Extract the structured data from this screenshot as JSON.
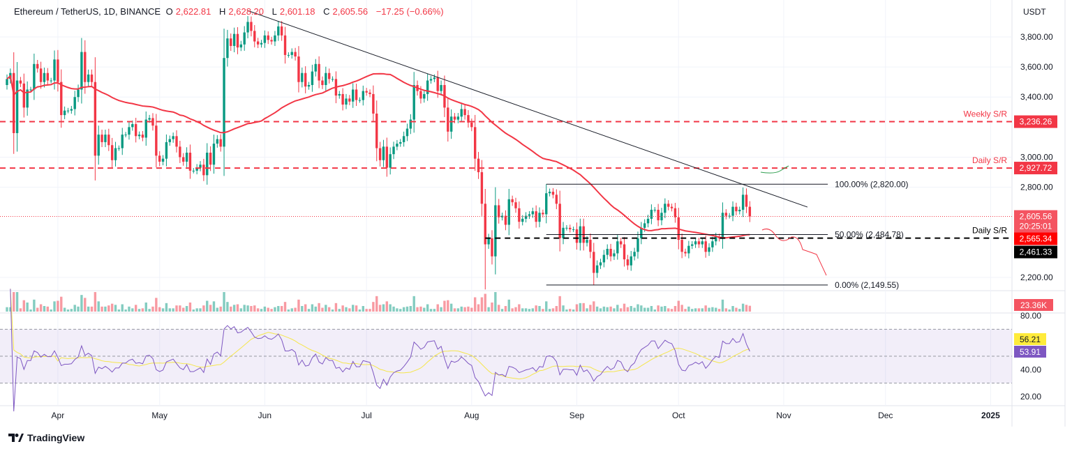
{
  "header": {
    "symbol": "Ethereum / TetherUS, 1D, BINANCE",
    "open_label": "O",
    "open": "2,622.81",
    "high_label": "H",
    "high": "2,628.20",
    "low_label": "L",
    "low": "2,601.18",
    "close_label": "C",
    "close": "2,605.56",
    "change": "−17.25 (−0.66%)"
  },
  "axis_unit": "USDT",
  "branding": "TradingView",
  "colors": {
    "up": "#089981",
    "down": "#f23645",
    "sma": "#f23645",
    "rsi": "#7e57c2",
    "rsi_ma": "#f5e64b",
    "resistance": "#f23645",
    "support": "#000000"
  },
  "chart_data": {
    "type": "candlestick",
    "interval": "1D",
    "first_date": "2024-03-17",
    "last_date": "2024-10-22",
    "closes": [
      3520,
      3560,
      3160,
      3510,
      3490,
      3330,
      3450,
      3450,
      3620,
      3590,
      3500,
      3560,
      3510,
      3510,
      3650,
      3500,
      3280,
      3310,
      3310,
      3320,
      3400,
      3450,
      3700,
      3500,
      3550,
      3500,
      3010,
      3150,
      3100,
      3150,
      3080,
      2980,
      3060,
      3060,
      3150,
      3150,
      3200,
      3220,
      3140,
      3150,
      3130,
      3250,
      3260,
      3210,
      3010,
      2970,
      2990,
      3100,
      3120,
      3140,
      3070,
      3000,
      2970,
      3030,
      2910,
      2910,
      2930,
      2950,
      2880,
      3030,
      2950,
      3090,
      3120,
      3070,
      3660,
      3790,
      3740,
      3820,
      3730,
      3750,
      3830,
      3900,
      3840,
      3770,
      3750,
      3760,
      3810,
      3780,
      3770,
      3810,
      3870,
      3810,
      3680,
      3680,
      3700,
      3670,
      3500,
      3560,
      3470,
      3480,
      3570,
      3620,
      3510,
      3480,
      3560,
      3520,
      3520,
      3410,
      3420,
      3350,
      3390,
      3370,
      3450,
      3380,
      3380,
      3440,
      3430,
      3420,
      3290,
      3060,
      2980,
      3070,
      2930,
      3020,
      3070,
      3090,
      3100,
      3140,
      3190,
      3250,
      3480,
      3440,
      3390,
      3420,
      3510,
      3520,
      3530,
      3440,
      3480,
      3330,
      3170,
      3270,
      3250,
      3270,
      3320,
      3280,
      3230,
      3200,
      2990,
      2900,
      2690,
      2420,
      2460,
      2340,
      2680,
      2600,
      2610,
      2550,
      2720,
      2700,
      2660,
      2570,
      2590,
      2610,
      2620,
      2640,
      2570,
      2630,
      2620,
      2760,
      2770,
      2750,
      2690,
      2460,
      2530,
      2530,
      2520,
      2520,
      2430,
      2540,
      2430,
      2450,
      2370,
      2230,
      2280,
      2300,
      2350,
      2390,
      2340,
      2360,
      2440,
      2420,
      2320,
      2280,
      2340,
      2370,
      2460,
      2530,
      2560,
      2590,
      2650,
      2650,
      2580,
      2630,
      2690,
      2670,
      2660,
      2600,
      2450,
      2370,
      2360,
      2410,
      2420,
      2440,
      2420,
      2440,
      2370,
      2400,
      2440,
      2470,
      2460,
      2630,
      2610,
      2610,
      2670,
      2640,
      2650,
      2750,
      2670,
      2605.56
    ],
    "notable_lows": [
      {
        "date": "2024-08-05",
        "low": 2120
      },
      {
        "date": "2024-09-06",
        "low": 2149.55
      }
    ],
    "price_ticks": [
      "3,800.00",
      "3,600.00",
      "3,400.00",
      "3,000.00",
      "2,800.00",
      "2,200.00"
    ],
    "price_tick_values": [
      3800,
      3600,
      3400,
      3000,
      2800,
      2200
    ],
    "time_ticks": [
      {
        "label": "Apr",
        "date": "2024-04-01"
      },
      {
        "label": "May",
        "date": "2024-05-01"
      },
      {
        "label": "Jun",
        "date": "2024-06-01"
      },
      {
        "label": "Jul",
        "date": "2024-07-01"
      },
      {
        "label": "Aug",
        "date": "2024-08-01"
      },
      {
        "label": "Sep",
        "date": "2024-09-01"
      },
      {
        "label": "Oct",
        "date": "2024-10-01"
      },
      {
        "label": "Nov",
        "date": "2024-11-01"
      },
      {
        "label": "Dec",
        "date": "2024-12-01"
      },
      {
        "label": "2025",
        "date": "2025-01-01",
        "bold": true
      }
    ],
    "moving_average": {
      "type": "SMA",
      "period": 50,
      "last": "2,565.34"
    },
    "last_price": {
      "value": "2,605.56",
      "countdown": "20:25:01"
    },
    "volume": {
      "last": "23.36K"
    },
    "levels": [
      {
        "label": "Weekly S/R",
        "value": 3236.26,
        "price_label": "3,236.26",
        "color": "#f23645"
      },
      {
        "label": "Daily S/R",
        "value": 2927.72,
        "price_label": "2,927.72",
        "color": "#f23645"
      },
      {
        "label": "Daily S/R",
        "value": 2461.33,
        "price_label": "2,461.33",
        "color": "#000000",
        "from_date": "2024-08-05"
      }
    ],
    "fibonacci": {
      "from_date": "2024-08-23",
      "to_date": "2024-11-14",
      "levels": [
        {
          "label": "100.00% (2,820.00)",
          "value": 2820.0
        },
        {
          "label": "50.00% (2,484.78)",
          "value": 2484.78
        },
        {
          "label": "0.00% (2,149.55)",
          "value": 2149.55
        }
      ]
    },
    "trendline": {
      "points": [
        {
          "date": "2024-05-27",
          "price": 3975
        },
        {
          "date": "2024-11-08",
          "price": 2668
        }
      ]
    },
    "rsi": {
      "period": 14,
      "value": "53.91",
      "ma_value": "56.21",
      "ticks": [
        "80.00",
        "40.00",
        "20.00"
      ],
      "tick_values": [
        80,
        40,
        20
      ],
      "bands": [
        70,
        50,
        30
      ],
      "ylim": [
        10,
        90
      ]
    }
  }
}
